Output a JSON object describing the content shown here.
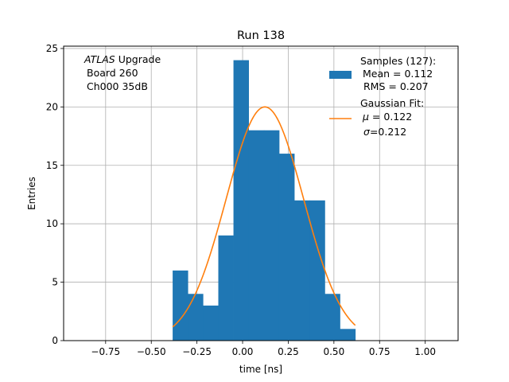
{
  "chart_data": {
    "type": "bar",
    "title": "Run 138",
    "xlabel": "time [ns]",
    "ylabel": "Entries",
    "xlim": [
      -0.98,
      1.18
    ],
    "ylim": [
      0,
      25.2
    ],
    "grid": true,
    "xticks": [
      -0.75,
      -0.5,
      -0.25,
      0.0,
      0.25,
      0.5,
      0.75,
      1.0
    ],
    "xtick_labels": [
      "−0.75",
      "−0.50",
      "−0.25",
      "0.00",
      "0.25",
      "0.50",
      "0.75",
      "1.00"
    ],
    "yticks": [
      0,
      5,
      10,
      15,
      20,
      25
    ],
    "ytick_labels": [
      "0",
      "5",
      "10",
      "15",
      "20",
      "25"
    ],
    "histogram": {
      "name": "Samples (127):",
      "color": "#1f77b4",
      "bin_edges": [
        -0.383,
        -0.3,
        -0.217,
        -0.133,
        -0.05,
        0.033,
        0.117,
        0.2,
        0.283,
        0.367,
        0.45,
        0.533,
        0.617
      ],
      "counts": [
        6,
        4,
        3,
        9,
        24,
        18,
        18,
        16,
        12,
        12,
        4,
        1
      ]
    },
    "fit": {
      "name": "Gaussian Fit:",
      "color": "#ff7f0e",
      "mu": 0.122,
      "sigma": 0.212,
      "amplitude": 20.0,
      "x_range": [
        -0.383,
        0.617
      ]
    },
    "annotation": {
      "italic": "ATLAS",
      "rest": " Upgrade",
      "line2": "Board 260",
      "line3": "Ch000 35dB"
    },
    "legend": {
      "position": "top-right",
      "samples_mean": "Mean = 0.112",
      "samples_rms": "RMS = 0.207",
      "fit_mu_label": " = 0.122",
      "fit_sigma_label": "=0.212"
    }
  }
}
